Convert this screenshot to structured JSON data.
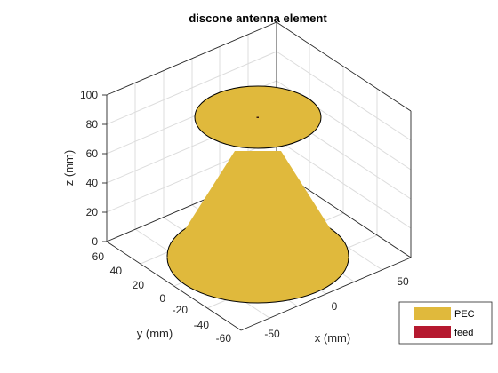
{
  "figure": {
    "title": "discone antenna element",
    "x_axis": {
      "label": "x (mm)",
      "ticks": [
        "-50",
        "0",
        "50"
      ]
    },
    "y_axis": {
      "label": "y (mm)",
      "ticks": [
        "-60",
        "-40",
        "-20",
        "0",
        "20",
        "40",
        "60"
      ]
    },
    "z_axis": {
      "label": "z (mm)",
      "ticks": [
        "0",
        "20",
        "40",
        "60",
        "80",
        "100"
      ]
    },
    "legend": {
      "entries": [
        {
          "label": "PEC",
          "color": "#e0b93c"
        },
        {
          "label": "feed",
          "color": "#b5192f"
        }
      ]
    },
    "colors": {
      "metal": "#e0b93c",
      "feed": "#b5192f",
      "edge": "#000000",
      "grid": "#dcdcdc"
    }
  }
}
